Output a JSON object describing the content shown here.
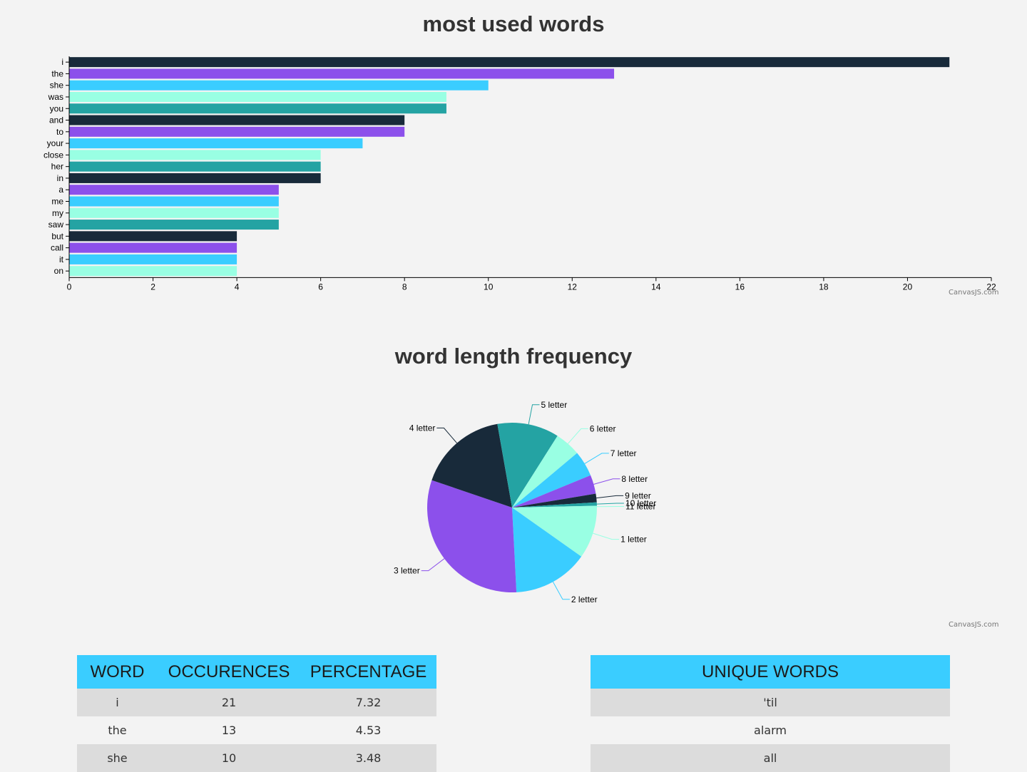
{
  "chart_data": [
    {
      "type": "bar",
      "orientation": "horizontal",
      "title": "most used words",
      "categories": [
        "i",
        "the",
        "she",
        "was",
        "you",
        "and",
        "to",
        "your",
        "close",
        "her",
        "in",
        "a",
        "me",
        "my",
        "saw",
        "but",
        "call",
        "it",
        "on"
      ],
      "values": [
        21,
        13,
        10,
        9,
        9,
        8,
        8,
        7,
        6,
        6,
        6,
        5,
        5,
        5,
        5,
        4,
        4,
        4,
        4
      ],
      "xlim": [
        0,
        22
      ],
      "xticks": [
        0,
        2,
        4,
        6,
        8,
        10,
        12,
        14,
        16,
        18,
        20,
        22
      ],
      "grid": false,
      "colors": [
        "#182a3a",
        "#8c50eb",
        "#3acdff",
        "#99ffe3",
        "#24a3a3"
      ],
      "credit": "CanvasJS.com"
    },
    {
      "type": "pie",
      "title": "word length frequency",
      "slices": [
        {
          "label": "1 letter",
          "value": 30,
          "color": "#99ffe3"
        },
        {
          "label": "2 letter",
          "value": 44,
          "color": "#3acdff"
        },
        {
          "label": "3 letter",
          "value": 95,
          "color": "#8c50eb"
        },
        {
          "label": "4 letter",
          "value": 52,
          "color": "#182a3a"
        },
        {
          "label": "5 letter",
          "value": 36,
          "color": "#24a3a3"
        },
        {
          "label": "6 letter",
          "value": 15,
          "color": "#99ffe3"
        },
        {
          "label": "7 letter",
          "value": 15,
          "color": "#3acdff"
        },
        {
          "label": "8 letter",
          "value": 11,
          "color": "#8c50eb"
        },
        {
          "label": "9 letter",
          "value": 5,
          "color": "#182a3a"
        },
        {
          "label": "10 letter",
          "value": 2,
          "color": "#24a3a3"
        },
        {
          "label": "11 letter",
          "value": 1,
          "color": "#99ffe3"
        }
      ],
      "credit": "CanvasJS.com"
    }
  ],
  "words_table": {
    "headers": [
      "WORD",
      "OCCURENCES",
      "PERCENTAGE"
    ],
    "rows": [
      [
        "i",
        "21",
        "7.32"
      ],
      [
        "the",
        "13",
        "4.53"
      ],
      [
        "she",
        "10",
        "3.48"
      ]
    ]
  },
  "unique_table": {
    "header": "UNIQUE WORDS",
    "rows": [
      "'til",
      "alarm",
      "all"
    ]
  }
}
